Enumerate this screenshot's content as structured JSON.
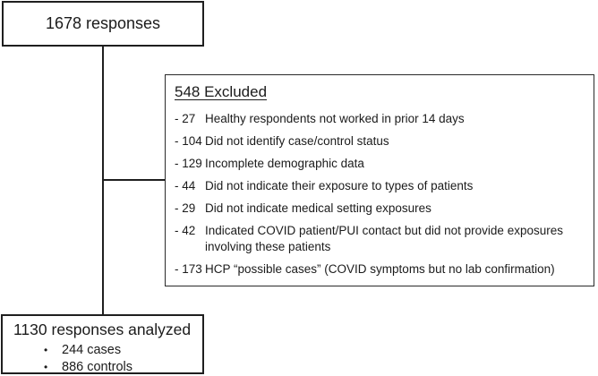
{
  "diagram": {
    "top_box": {
      "label": "1678 responses"
    },
    "excluded_box": {
      "title": "548 Excluded",
      "items": [
        {
          "count": "- 27",
          "text": "Healthy respondents not worked in prior 14 days"
        },
        {
          "count": "- 104",
          "text": "Did not identify case/control status"
        },
        {
          "count": "- 129",
          "text": "Incomplete demographic data"
        },
        {
          "count": "- 44",
          "text": "Did not indicate their exposure to types of patients"
        },
        {
          "count": "- 29",
          "text": "Did not indicate medical setting exposures"
        },
        {
          "count": "- 42",
          "text": "Indicated COVID patient/PUI contact but did not provide exposures involving these patients"
        },
        {
          "count": "- 173",
          "text": "HCP “possible cases” (COVID symptoms but no lab confirmation)"
        }
      ]
    },
    "final_box": {
      "title": "1130 responses analyzed",
      "bullet_glyph": "•",
      "bullets": [
        "244 cases",
        "886 controls"
      ]
    },
    "colors": {
      "border": "#1f1f1f",
      "text": "#1b1b1b",
      "background": "#ffffff"
    }
  }
}
